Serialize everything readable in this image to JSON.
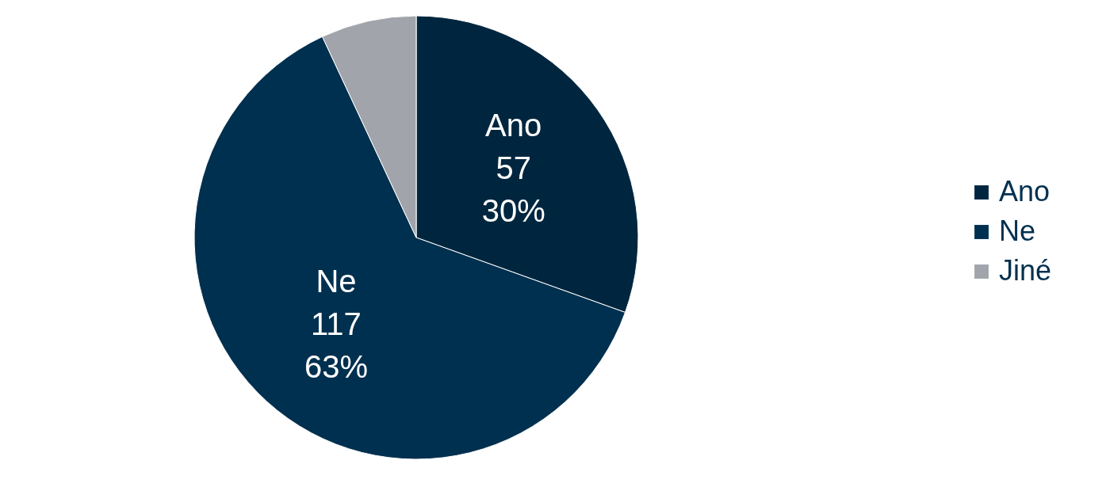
{
  "chart_data": {
    "type": "pie",
    "categories": [
      "Ano",
      "Ne",
      "Jiné"
    ],
    "values": [
      57,
      117,
      13
    ],
    "value_labels": [
      "57\n30%",
      "117\n63%",
      null
    ],
    "colors": [
      "#00263f",
      "#00304f",
      "#a1a4ab"
    ],
    "legend": "right"
  }
}
